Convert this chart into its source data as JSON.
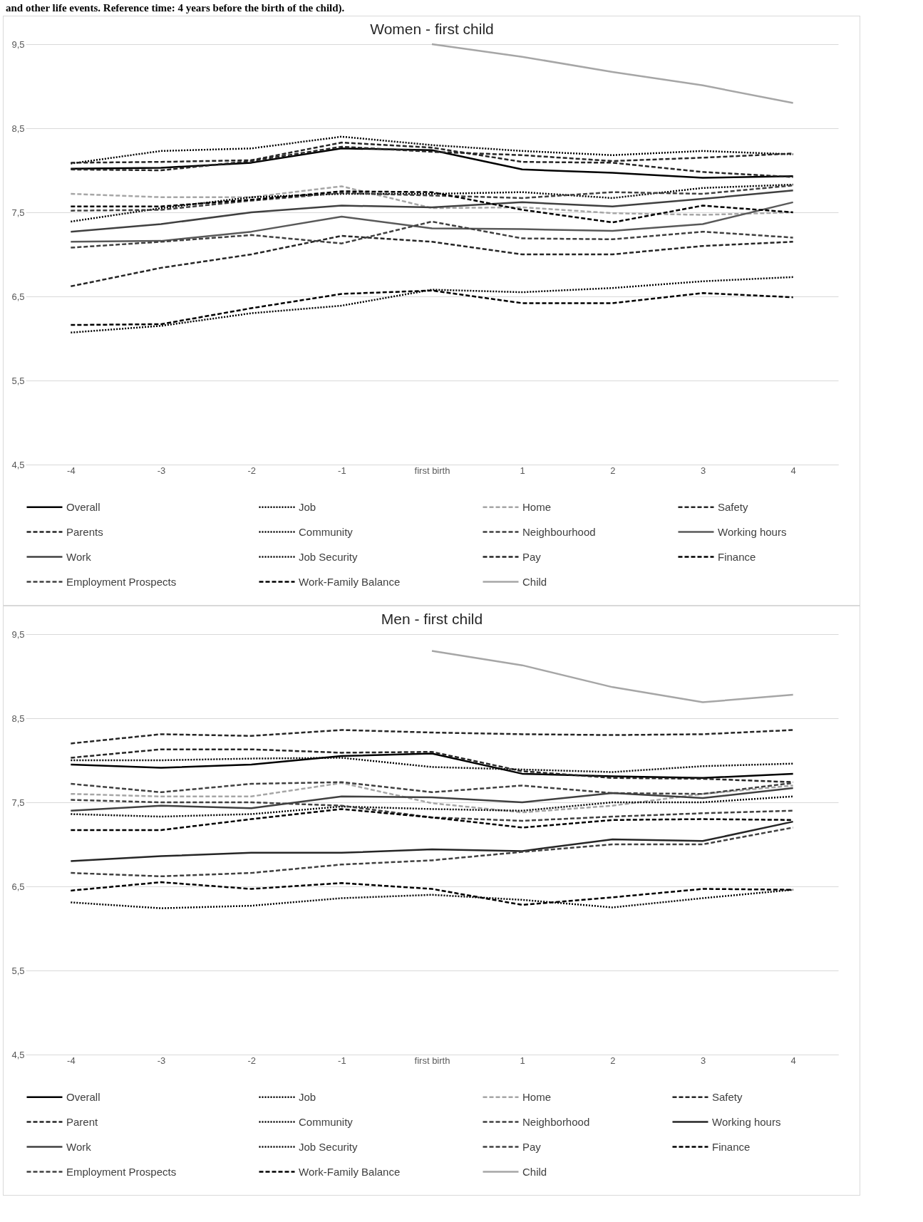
{
  "chart_data": [
    {
      "type": "line",
      "title": "Women - first child",
      "annotations": [
        "and other life events. Reference time: 4 years before the birth of the child)."
      ],
      "categories": [
        "-4",
        "-3",
        "-2",
        "-1",
        "first birth",
        "1",
        "2",
        "3",
        "4"
      ],
      "ylim": [
        4.5,
        9.5
      ],
      "yticks": [
        {
          "value": 4.5,
          "label": "4,5"
        },
        {
          "value": 5.5,
          "label": "5,5"
        },
        {
          "value": 6.5,
          "label": "6,5"
        },
        {
          "value": 7.5,
          "label": "7,5"
        },
        {
          "value": 8.5,
          "label": "8,5"
        },
        {
          "value": 9.5,
          "label": "9,5"
        }
      ],
      "grid": "y",
      "legend": "bottom",
      "series": [
        {
          "name": "Overall",
          "color": "#000000",
          "line_style": "solid",
          "values": [
            8.02,
            8.03,
            8.09,
            8.26,
            8.24,
            8.01,
            7.97,
            7.91,
            7.93
          ]
        },
        {
          "name": "Job",
          "color": "#000000",
          "line_style": "dotted",
          "values": [
            8.08,
            8.23,
            8.26,
            8.4,
            8.3,
            8.23,
            8.18,
            8.23,
            8.19
          ]
        },
        {
          "name": "Home",
          "color": "#a6a6a6",
          "line_style": "dashed",
          "values": [
            7.72,
            7.68,
            7.68,
            7.81,
            7.55,
            7.56,
            7.49,
            7.47,
            7.5
          ]
        },
        {
          "name": "Safety",
          "color": "#262626",
          "line_style": "dashed",
          "values": [
            8.01,
            8.0,
            8.11,
            8.28,
            8.22,
            8.18,
            8.11,
            8.15,
            8.2
          ]
        },
        {
          "name": "Parents",
          "color": "#262626",
          "line_style": "dashed",
          "values": [
            8.09,
            8.1,
            8.12,
            8.33,
            8.27,
            8.1,
            8.09,
            7.98,
            7.92
          ]
        },
        {
          "name": "Community",
          "color": "#000000",
          "line_style": "dotted",
          "values": [
            7.39,
            7.55,
            7.68,
            7.72,
            7.72,
            7.74,
            7.67,
            7.79,
            7.83
          ]
        },
        {
          "name": "Neighbourhood",
          "color": "#404040",
          "line_style": "dashed",
          "values": [
            7.52,
            7.53,
            7.64,
            7.73,
            7.7,
            7.67,
            7.74,
            7.72,
            7.82
          ]
        },
        {
          "name": "Working hours",
          "color": "#595959",
          "line_style": "solid",
          "values": [
            7.15,
            7.16,
            7.27,
            7.45,
            7.31,
            7.3,
            7.28,
            7.36,
            7.62
          ]
        },
        {
          "name": "Work",
          "color": "#404040",
          "line_style": "solid",
          "values": [
            7.27,
            7.36,
            7.5,
            7.58,
            7.56,
            7.62,
            7.57,
            7.66,
            7.76
          ]
        },
        {
          "name": "Job Security",
          "color": "#000000",
          "line_style": "dotted",
          "values": [
            6.07,
            6.15,
            6.3,
            6.39,
            6.58,
            6.55,
            6.6,
            6.68,
            6.73
          ]
        },
        {
          "name": "Pay",
          "color": "#262626",
          "line_style": "dashed",
          "values": [
            6.62,
            6.84,
            7.0,
            7.22,
            7.15,
            7.0,
            7.0,
            7.1,
            7.15
          ]
        },
        {
          "name": "Finance",
          "color": "#000000",
          "line_style": "dashed",
          "values": [
            6.16,
            6.17,
            6.36,
            6.53,
            6.57,
            6.42,
            6.42,
            6.54,
            6.49
          ]
        },
        {
          "name": "Employment Prospects",
          "color": "#404040",
          "line_style": "dashed",
          "values": [
            7.08,
            7.15,
            7.23,
            7.13,
            7.39,
            7.19,
            7.18,
            7.27,
            7.2
          ]
        },
        {
          "name": "Work-Family Balance",
          "color": "#000000",
          "line_style": "dashed",
          "values": [
            7.57,
            7.57,
            7.65,
            7.75,
            7.74,
            7.53,
            7.38,
            7.58,
            7.5
          ]
        },
        {
          "name": "Child",
          "color": "#a6a6a6",
          "line_style": "solid",
          "values": [
            null,
            null,
            null,
            null,
            9.5,
            9.35,
            9.17,
            9.01,
            8.8
          ]
        }
      ]
    },
    {
      "type": "line",
      "title": "Men - first child",
      "categories": [
        "-4",
        "-3",
        "-2",
        "-1",
        "first birth",
        "1",
        "2",
        "3",
        "4"
      ],
      "ylim": [
        4.5,
        9.5
      ],
      "yticks": [
        {
          "value": 4.5,
          "label": "4,5"
        },
        {
          "value": 5.5,
          "label": "5,5"
        },
        {
          "value": 6.5,
          "label": "6,5"
        },
        {
          "value": 7.5,
          "label": "7,5"
        },
        {
          "value": 8.5,
          "label": "8,5"
        },
        {
          "value": 9.5,
          "label": "9,5"
        }
      ],
      "grid": "y",
      "legend": "bottom",
      "series": [
        {
          "name": "Overall",
          "color": "#000000",
          "line_style": "solid",
          "values": [
            7.95,
            7.91,
            7.95,
            8.05,
            8.08,
            7.84,
            7.81,
            7.79,
            7.84
          ]
        },
        {
          "name": "Job",
          "color": "#000000",
          "line_style": "dotted",
          "values": [
            8.0,
            8.0,
            8.02,
            8.03,
            7.92,
            7.89,
            7.86,
            7.93,
            7.96
          ]
        },
        {
          "name": "Home",
          "color": "#a6a6a6",
          "line_style": "dashed",
          "values": [
            7.6,
            7.57,
            7.57,
            7.73,
            7.49,
            7.38,
            7.46,
            7.6,
            7.7
          ]
        },
        {
          "name": "Safety",
          "color": "#262626",
          "line_style": "dashed",
          "values": [
            8.2,
            8.31,
            8.29,
            8.36,
            8.33,
            8.31,
            8.3,
            8.31,
            8.36
          ]
        },
        {
          "name": "Parent",
          "color": "#262626",
          "line_style": "dashed",
          "values": [
            8.03,
            8.13,
            8.13,
            8.09,
            8.1,
            7.87,
            7.79,
            7.78,
            7.74
          ]
        },
        {
          "name": "Community",
          "color": "#000000",
          "line_style": "dotted",
          "values": [
            7.36,
            7.33,
            7.36,
            7.45,
            7.42,
            7.4,
            7.5,
            7.5,
            7.57
          ]
        },
        {
          "name": "Neighborhood",
          "color": "#404040",
          "line_style": "dashed",
          "values": [
            7.72,
            7.62,
            7.72,
            7.74,
            7.62,
            7.7,
            7.61,
            7.6,
            7.73
          ]
        },
        {
          "name": "Working hours",
          "color": "#262626",
          "line_style": "solid",
          "values": [
            6.8,
            6.86,
            6.9,
            6.9,
            6.94,
            6.92,
            7.06,
            7.04,
            7.27
          ]
        },
        {
          "name": "Work",
          "color": "#404040",
          "line_style": "solid",
          "values": [
            7.4,
            7.46,
            7.43,
            7.57,
            7.56,
            7.5,
            7.61,
            7.55,
            7.67
          ]
        },
        {
          "name": "Job Security",
          "color": "#000000",
          "line_style": "dotted",
          "values": [
            6.31,
            6.24,
            6.27,
            6.36,
            6.4,
            6.34,
            6.25,
            6.36,
            6.46
          ]
        },
        {
          "name": "Pay",
          "color": "#404040",
          "line_style": "dashed",
          "values": [
            6.66,
            6.62,
            6.66,
            6.76,
            6.81,
            6.91,
            7.0,
            7.0,
            7.2
          ]
        },
        {
          "name": "Finance",
          "color": "#000000",
          "line_style": "dashed",
          "values": [
            6.45,
            6.55,
            6.47,
            6.54,
            6.47,
            6.28,
            6.37,
            6.47,
            6.46
          ]
        },
        {
          "name": "Employment Prospects",
          "color": "#404040",
          "line_style": "dashed",
          "values": [
            7.53,
            7.5,
            7.5,
            7.46,
            7.32,
            7.28,
            7.33,
            7.37,
            7.4
          ]
        },
        {
          "name": "Work-Family Balance",
          "color": "#000000",
          "line_style": "dashed",
          "values": [
            7.17,
            7.17,
            7.3,
            7.42,
            7.32,
            7.2,
            7.29,
            7.3,
            7.29
          ]
        },
        {
          "name": "Child",
          "color": "#a6a6a6",
          "line_style": "solid",
          "values": [
            null,
            null,
            null,
            null,
            9.3,
            9.13,
            8.87,
            8.69,
            8.78
          ]
        }
      ]
    }
  ]
}
